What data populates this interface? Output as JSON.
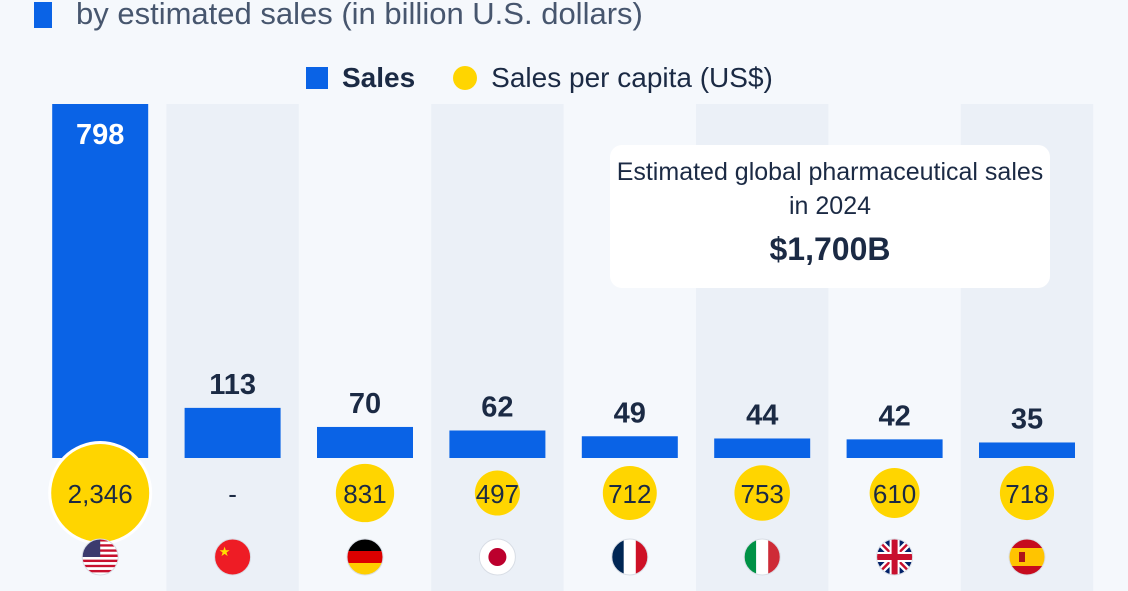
{
  "subtitle": "by estimated sales (in billion U.S. dollars)",
  "colors": {
    "sales": "#0a63e6",
    "per_capita": "#ffd500",
    "background": "#f5f8fc",
    "band": "#ebf0f7",
    "text": "#1b2a44"
  },
  "annotation": {
    "text": "Estimated global pharmaceutical sales in 2024",
    "value": "$1,700B"
  },
  "chart_data": {
    "type": "bar",
    "categories": [
      "United States",
      "China",
      "Germany",
      "Japan",
      "France",
      "Italy",
      "United Kingdom",
      "Spain"
    ],
    "flags": [
      "us-flag-icon",
      "cn-flag-icon",
      "de-flag-icon",
      "jp-flag-icon",
      "fr-flag-icon",
      "it-flag-icon",
      "gb-flag-icon",
      "es-flag-icon"
    ],
    "series": [
      {
        "name": "Sales",
        "values": [
          798,
          113,
          70,
          62,
          49,
          44,
          42,
          35
        ],
        "labels": [
          "798",
          "113",
          "70",
          "62",
          "49",
          "44",
          "42",
          "35"
        ]
      },
      {
        "name": "Sales per capita (US$)",
        "values": [
          2346,
          null,
          831,
          497,
          712,
          753,
          610,
          718
        ],
        "labels": [
          "2,346",
          "-",
          "831",
          "497",
          "712",
          "753",
          "610",
          "718"
        ]
      }
    ],
    "legend": "top-center",
    "grid": false
  }
}
